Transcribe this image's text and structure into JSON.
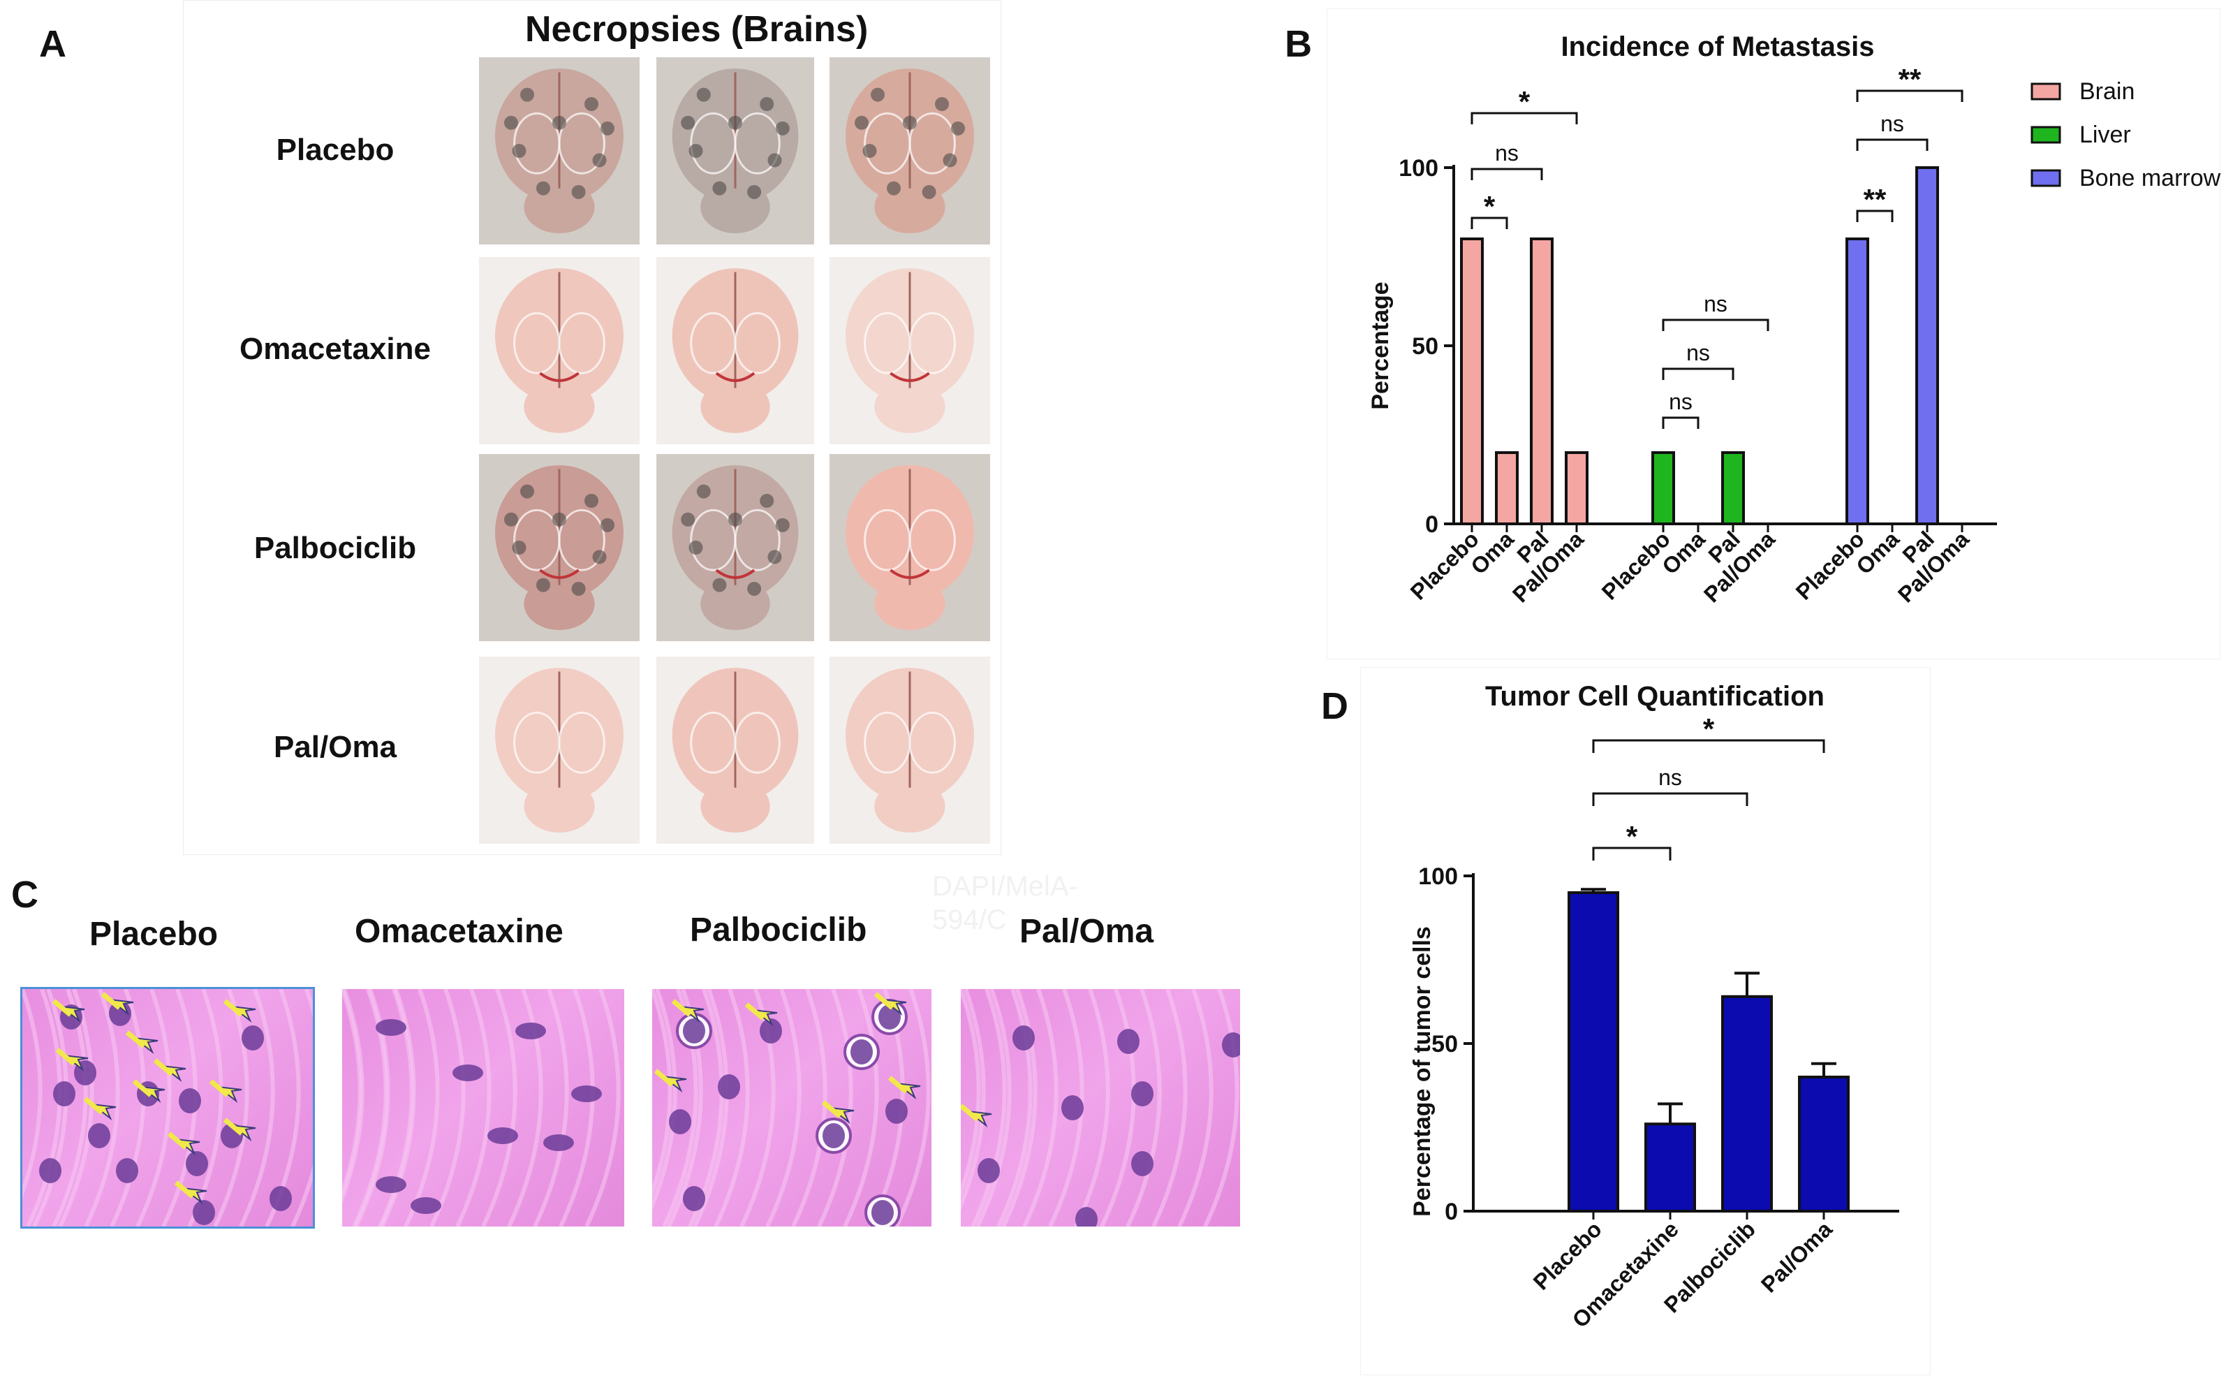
{
  "panels": {
    "A": {
      "letter": "A",
      "title": "Necropsies (Brains)",
      "rows": [
        "Placebo",
        "Omacetaxine",
        "Palbociclib",
        "Pal/Oma"
      ]
    },
    "B": {
      "letter": "B"
    },
    "C": {
      "letter": "C",
      "labels": [
        "Placebo",
        "Omacetaxine",
        "Palbociclib",
        "Pal/Oma"
      ],
      "watermark": [
        "DAPI/MelA-",
        "594/C"
      ]
    },
    "D": {
      "letter": "D"
    }
  },
  "colors": {
    "brain": "#f4a6a3",
    "liver": "#1fb51f",
    "bone_marrow": "#6f6ff0",
    "tumor_bar": "#0b0bb0",
    "annotation_arrow": "#f1e84a"
  },
  "chart_data": [
    {
      "id": "B",
      "type": "bar",
      "title": "Incidence of Metastasis",
      "ylabel": "Percentage",
      "xlabel": "",
      "ylim": [
        0,
        100
      ],
      "yticks": [
        0,
        50,
        100
      ],
      "categories": [
        "Placebo",
        "Oma",
        "Pal",
        "Pal/Oma"
      ],
      "series": [
        {
          "name": "Brain",
          "color": "#f4a6a3",
          "values": [
            80,
            20,
            80,
            20
          ]
        },
        {
          "name": "Liver",
          "color": "#1fb51f",
          "values": [
            20,
            0,
            20,
            0
          ]
        },
        {
          "name": "Bone marrow",
          "color": "#6f6ff0",
          "values": [
            80,
            0,
            100,
            0
          ]
        }
      ],
      "legend": "right",
      "significance": [
        {
          "series": "Brain",
          "from": "Placebo",
          "to": "Oma",
          "label": "*"
        },
        {
          "series": "Brain",
          "from": "Placebo",
          "to": "Pal",
          "label": "ns"
        },
        {
          "series": "Brain",
          "from": "Placebo",
          "to": "Pal/Oma",
          "label": "*"
        },
        {
          "series": "Liver",
          "from": "Placebo",
          "to": "Oma",
          "label": "ns"
        },
        {
          "series": "Liver",
          "from": "Placebo",
          "to": "Pal",
          "label": "ns"
        },
        {
          "series": "Liver",
          "from": "Placebo",
          "to": "Pal/Oma",
          "label": "ns"
        },
        {
          "series": "Bone marrow",
          "from": "Placebo",
          "to": "Oma",
          "label": "**"
        },
        {
          "series": "Bone marrow",
          "from": "Placebo",
          "to": "Pal",
          "label": "ns"
        },
        {
          "series": "Bone marrow",
          "from": "Placebo",
          "to": "Pal/Oma",
          "label": "**"
        }
      ]
    },
    {
      "id": "D",
      "type": "bar",
      "title": "Tumor Cell Quantification",
      "ylabel": "Percentage of tumor cells",
      "xlabel": "",
      "ylim": [
        0,
        100
      ],
      "yticks": [
        0,
        50,
        100
      ],
      "categories": [
        "Placebo",
        "Omacetaxine",
        "Palbociclib",
        "Pal/Oma"
      ],
      "values": [
        95,
        26,
        64,
        40
      ],
      "errors": [
        1,
        6,
        7,
        4
      ],
      "significance": [
        {
          "from": "Placebo",
          "to": "Omacetaxine",
          "label": "*"
        },
        {
          "from": "Placebo",
          "to": "Palbociclib",
          "label": "ns"
        },
        {
          "from": "Placebo",
          "to": "Pal/Oma",
          "label": "*"
        }
      ]
    }
  ]
}
